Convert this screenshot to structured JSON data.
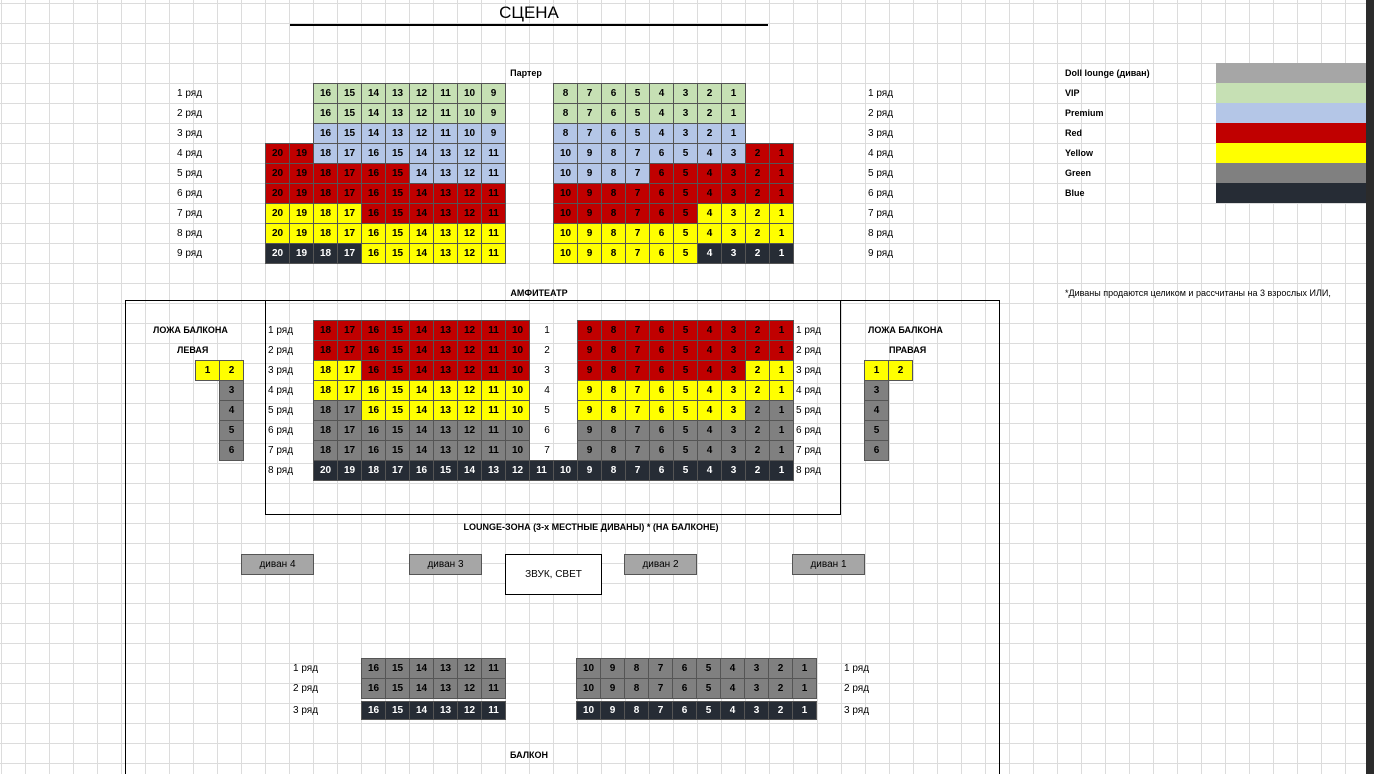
{
  "stage": "СЦЕНА",
  "parterre": {
    "title": "Партер",
    "rows": [
      {
        "label": "1 ряд",
        "left": [
          16,
          15,
          14,
          13,
          12,
          11,
          10,
          9
        ],
        "left_colors": [
          "VIP",
          "VIP",
          "VIP",
          "VIP",
          "VIP",
          "VIP",
          "VIP",
          "VIP"
        ],
        "right": [
          8,
          7,
          6,
          5,
          4,
          3,
          2,
          1
        ],
        "right_colors": [
          "VIP",
          "VIP",
          "VIP",
          "VIP",
          "VIP",
          "VIP",
          "VIP",
          "VIP"
        ]
      },
      {
        "label": "2 ряд",
        "left": [
          16,
          15,
          14,
          13,
          12,
          11,
          10,
          9
        ],
        "left_colors": [
          "VIP",
          "VIP",
          "VIP",
          "VIP",
          "VIP",
          "VIP",
          "VIP",
          "VIP"
        ],
        "right": [
          8,
          7,
          6,
          5,
          4,
          3,
          2,
          1
        ],
        "right_colors": [
          "VIP",
          "VIP",
          "VIP",
          "VIP",
          "VIP",
          "VIP",
          "VIP",
          "VIP"
        ]
      },
      {
        "label": "3 ряд",
        "left": [
          16,
          15,
          14,
          13,
          12,
          11,
          10,
          9
        ],
        "left_colors": [
          "Premium",
          "Premium",
          "Premium",
          "Premium",
          "Premium",
          "Premium",
          "Premium",
          "Premium"
        ],
        "right": [
          8,
          7,
          6,
          5,
          4,
          3,
          2,
          1
        ],
        "right_colors": [
          "Premium",
          "Premium",
          "Premium",
          "Premium",
          "Premium",
          "Premium",
          "Premium",
          "Premium"
        ]
      },
      {
        "label": "4 ряд",
        "left": [
          20,
          19,
          18,
          17,
          16,
          15,
          14,
          13,
          12,
          11
        ],
        "left_colors": [
          "Red",
          "Red",
          "Premium",
          "Premium",
          "Premium",
          "Premium",
          "Premium",
          "Premium",
          "Premium",
          "Premium"
        ],
        "right": [
          10,
          9,
          8,
          7,
          6,
          5,
          4,
          3,
          2,
          1
        ],
        "right_colors": [
          "Premium",
          "Premium",
          "Premium",
          "Premium",
          "Premium",
          "Premium",
          "Premium",
          "Premium",
          "Red",
          "Red"
        ]
      },
      {
        "label": "5 ряд",
        "left": [
          20,
          19,
          18,
          17,
          16,
          15,
          14,
          13,
          12,
          11
        ],
        "left_colors": [
          "Red",
          "Red",
          "Red",
          "Red",
          "Red",
          "Red",
          "Premium",
          "Premium",
          "Premium",
          "Premium"
        ],
        "right": [
          10,
          9,
          8,
          7,
          6,
          5,
          4,
          3,
          2,
          1
        ],
        "right_colors": [
          "Premium",
          "Premium",
          "Premium",
          "Premium",
          "Red",
          "Red",
          "Red",
          "Red",
          "Red",
          "Red"
        ]
      },
      {
        "label": "6 ряд",
        "left": [
          20,
          19,
          18,
          17,
          16,
          15,
          14,
          13,
          12,
          11
        ],
        "left_colors": [
          "Red",
          "Red",
          "Red",
          "Red",
          "Red",
          "Red",
          "Red",
          "Red",
          "Red",
          "Red"
        ],
        "right": [
          10,
          9,
          8,
          7,
          6,
          5,
          4,
          3,
          2,
          1
        ],
        "right_colors": [
          "Red",
          "Red",
          "Red",
          "Red",
          "Red",
          "Red",
          "Red",
          "Red",
          "Red",
          "Red"
        ]
      },
      {
        "label": "7 ряд",
        "left": [
          20,
          19,
          18,
          17,
          16,
          15,
          14,
          13,
          12,
          11
        ],
        "left_colors": [
          "Yellow",
          "Yellow",
          "Yellow",
          "Yellow",
          "Red",
          "Red",
          "Red",
          "Red",
          "Red",
          "Red"
        ],
        "right": [
          10,
          9,
          8,
          7,
          6,
          5,
          4,
          3,
          2,
          1
        ],
        "right_colors": [
          "Red",
          "Red",
          "Red",
          "Red",
          "Red",
          "Red",
          "Yellow",
          "Yellow",
          "Yellow",
          "Yellow"
        ]
      },
      {
        "label": "8 ряд",
        "left": [
          20,
          19,
          18,
          17,
          16,
          15,
          14,
          13,
          12,
          11
        ],
        "left_colors": [
          "Yellow",
          "Yellow",
          "Yellow",
          "Yellow",
          "Yellow",
          "Yellow",
          "Yellow",
          "Yellow",
          "Yellow",
          "Yellow"
        ],
        "right": [
          10,
          9,
          8,
          7,
          6,
          5,
          4,
          3,
          2,
          1
        ],
        "right_colors": [
          "Yellow",
          "Yellow",
          "Yellow",
          "Yellow",
          "Yellow",
          "Yellow",
          "Yellow",
          "Yellow",
          "Yellow",
          "Yellow"
        ]
      },
      {
        "label": "9 ряд",
        "left": [
          20,
          19,
          18,
          17,
          16,
          15,
          14,
          13,
          12,
          11
        ],
        "left_colors": [
          "Blue",
          "Blue",
          "Blue",
          "Blue",
          "Yellow",
          "Yellow",
          "Yellow",
          "Yellow",
          "Yellow",
          "Yellow"
        ],
        "right": [
          10,
          9,
          8,
          7,
          6,
          5,
          4,
          3,
          2,
          1
        ],
        "right_colors": [
          "Yellow",
          "Yellow",
          "Yellow",
          "Yellow",
          "Yellow",
          "Yellow",
          "Blue",
          "Blue",
          "Blue",
          "Blue"
        ]
      }
    ]
  },
  "amphitheatre": {
    "title": "АМФИТЕАТР",
    "rows": [
      {
        "label": "1 ряд",
        "num": 1,
        "left": [
          18,
          17,
          16,
          15,
          14,
          13,
          12,
          11,
          10
        ],
        "left_colors": [
          "Red",
          "Red",
          "Red",
          "Red",
          "Red",
          "Red",
          "Red",
          "Red",
          "Red"
        ],
        "right": [
          9,
          8,
          7,
          6,
          5,
          4,
          3,
          2,
          1
        ],
        "right_colors": [
          "Red",
          "Red",
          "Red",
          "Red",
          "Red",
          "Red",
          "Red",
          "Red",
          "Red"
        ]
      },
      {
        "label": "2 ряд",
        "num": 2,
        "left": [
          18,
          17,
          16,
          15,
          14,
          13,
          12,
          11,
          10
        ],
        "left_colors": [
          "Red",
          "Red",
          "Red",
          "Red",
          "Red",
          "Red",
          "Red",
          "Red",
          "Red"
        ],
        "right": [
          9,
          8,
          7,
          6,
          5,
          4,
          3,
          2,
          1
        ],
        "right_colors": [
          "Red",
          "Red",
          "Red",
          "Red",
          "Red",
          "Red",
          "Red",
          "Red",
          "Red"
        ]
      },
      {
        "label": "3 ряд",
        "num": 3,
        "left": [
          18,
          17,
          16,
          15,
          14,
          13,
          12,
          11,
          10
        ],
        "left_colors": [
          "Yellow",
          "Yellow",
          "Red",
          "Red",
          "Red",
          "Red",
          "Red",
          "Red",
          "Red"
        ],
        "right": [
          9,
          8,
          7,
          6,
          5,
          4,
          3,
          2,
          1
        ],
        "right_colors": [
          "Red",
          "Red",
          "Red",
          "Red",
          "Red",
          "Red",
          "Red",
          "Yellow",
          "Yellow"
        ]
      },
      {
        "label": "4 ряд",
        "num": 4,
        "left": [
          18,
          17,
          16,
          15,
          14,
          13,
          12,
          11,
          10
        ],
        "left_colors": [
          "Yellow",
          "Yellow",
          "Yellow",
          "Yellow",
          "Yellow",
          "Yellow",
          "Yellow",
          "Yellow",
          "Yellow"
        ],
        "right": [
          9,
          8,
          7,
          6,
          5,
          4,
          3,
          2,
          1
        ],
        "right_colors": [
          "Yellow",
          "Yellow",
          "Yellow",
          "Yellow",
          "Yellow",
          "Yellow",
          "Yellow",
          "Yellow",
          "Yellow"
        ]
      },
      {
        "label": "5 ряд",
        "num": 5,
        "left": [
          18,
          17,
          16,
          15,
          14,
          13,
          12,
          11,
          10
        ],
        "left_colors": [
          "Green",
          "Green",
          "Yellow",
          "Yellow",
          "Yellow",
          "Yellow",
          "Yellow",
          "Yellow",
          "Yellow"
        ],
        "right": [
          9,
          8,
          7,
          6,
          5,
          4,
          3,
          2,
          1
        ],
        "right_colors": [
          "Yellow",
          "Yellow",
          "Yellow",
          "Yellow",
          "Yellow",
          "Yellow",
          "Yellow",
          "Green",
          "Green"
        ]
      },
      {
        "label": "6 ряд",
        "num": 6,
        "left": [
          18,
          17,
          16,
          15,
          14,
          13,
          12,
          11,
          10
        ],
        "left_colors": [
          "Green",
          "Green",
          "Green",
          "Green",
          "Green",
          "Green",
          "Green",
          "Green",
          "Green"
        ],
        "right": [
          9,
          8,
          7,
          6,
          5,
          4,
          3,
          2,
          1
        ],
        "right_colors": [
          "Green",
          "Green",
          "Green",
          "Green",
          "Green",
          "Green",
          "Green",
          "Green",
          "Green"
        ]
      },
      {
        "label": "7 ряд",
        "num": 7,
        "left": [
          18,
          17,
          16,
          15,
          14,
          13,
          12,
          11,
          10
        ],
        "left_colors": [
          "Green",
          "Green",
          "Green",
          "Green",
          "Green",
          "Green",
          "Green",
          "Green",
          "Green"
        ],
        "right": [
          9,
          8,
          7,
          6,
          5,
          4,
          3,
          2,
          1
        ],
        "right_colors": [
          "Green",
          "Green",
          "Green",
          "Green",
          "Green",
          "Green",
          "Green",
          "Green",
          "Green"
        ]
      },
      {
        "label": "8 ряд",
        "left": [
          20,
          19,
          18,
          17,
          16,
          15,
          14,
          13,
          12,
          11,
          10
        ],
        "left_colors": [
          "Blue",
          "Blue",
          "Blue",
          "Blue",
          "Blue",
          "Blue",
          "Blue",
          "Blue",
          "Blue",
          "Blue",
          "Blue"
        ],
        "right": [
          9,
          8,
          7,
          6,
          5,
          4,
          3,
          2,
          1
        ],
        "right_colors": [
          "Blue",
          "Blue",
          "Blue",
          "Blue",
          "Blue",
          "Blue",
          "Blue",
          "Blue",
          "Blue"
        ]
      }
    ]
  },
  "loges": [
    {
      "title": "ЛОЖА БАЛКОНА",
      "side": "ЛЕВАЯ",
      "seats": [
        1,
        2,
        3,
        4,
        5,
        6
      ],
      "colors": [
        "Yellow",
        "Yellow",
        "Green",
        "Green",
        "Green",
        "Green"
      ]
    },
    {
      "title": "ЛОЖА БАЛКОНА",
      "side": "ПРАВАЯ",
      "seats": [
        1,
        2,
        3,
        4,
        5,
        6
      ],
      "colors": [
        "Yellow",
        "Yellow",
        "Green",
        "Green",
        "Green",
        "Green"
      ]
    }
  ],
  "lounge": {
    "title": "LOUNGE-ЗОНА (3-х МЕСТНЫЕ ДИВАНЫ) *  (НА БАЛКОНЕ)",
    "sofas": [
      "диван 4",
      "диван 3",
      "диван 2",
      "диван 1"
    ],
    "sound": "ЗВУК, СВЕТ"
  },
  "balcony": {
    "title": "БАЛКОН",
    "rows": [
      {
        "label": "1 ряд",
        "left": [
          16,
          15,
          14,
          13,
          12,
          11
        ],
        "left_colors": [
          "Green",
          "Green",
          "Green",
          "Green",
          "Green",
          "Green"
        ],
        "right": [
          10,
          9,
          8,
          7,
          6,
          5,
          4,
          3,
          2,
          1
        ],
        "right_colors": [
          "Green",
          "Green",
          "Green",
          "Green",
          "Green",
          "Green",
          "Green",
          "Green",
          "Green",
          "Green"
        ]
      },
      {
        "label": "2 ряд",
        "left": [
          16,
          15,
          14,
          13,
          12,
          11
        ],
        "left_colors": [
          "Green",
          "Green",
          "Green",
          "Green",
          "Green",
          "Green"
        ],
        "right": [
          10,
          9,
          8,
          7,
          6,
          5,
          4,
          3,
          2,
          1
        ],
        "right_colors": [
          "Green",
          "Green",
          "Green",
          "Green",
          "Green",
          "Green",
          "Green",
          "Green",
          "Green",
          "Green"
        ]
      },
      {
        "label": "3 ряд",
        "left": [
          16,
          15,
          14,
          13,
          12,
          11
        ],
        "left_colors": [
          "Blue",
          "Blue",
          "Blue",
          "Blue",
          "Blue",
          "Blue"
        ],
        "right": [
          10,
          9,
          8,
          7,
          6,
          5,
          4,
          3,
          2,
          1
        ],
        "right_colors": [
          "Blue",
          "Blue",
          "Blue",
          "Blue",
          "Blue",
          "Blue",
          "Blue",
          "Blue",
          "Blue",
          "Blue"
        ]
      }
    ]
  },
  "legend": [
    {
      "label": "Doll lounge (диван)",
      "color": "#a6a6a6"
    },
    {
      "label": "VIP",
      "color": "#c6e0b4"
    },
    {
      "label": "Premium",
      "color": "#b4c6e7"
    },
    {
      "label": "Red",
      "color": "#c00000"
    },
    {
      "label": "Yellow",
      "color": "#ffff00"
    },
    {
      "label": "Green",
      "color": "#808080"
    },
    {
      "label": "Blue",
      "color": "#262c35"
    }
  ],
  "note": "*Диваны продаются целиком и рассчитаны на 3 взрослых ИЛИ,"
}
